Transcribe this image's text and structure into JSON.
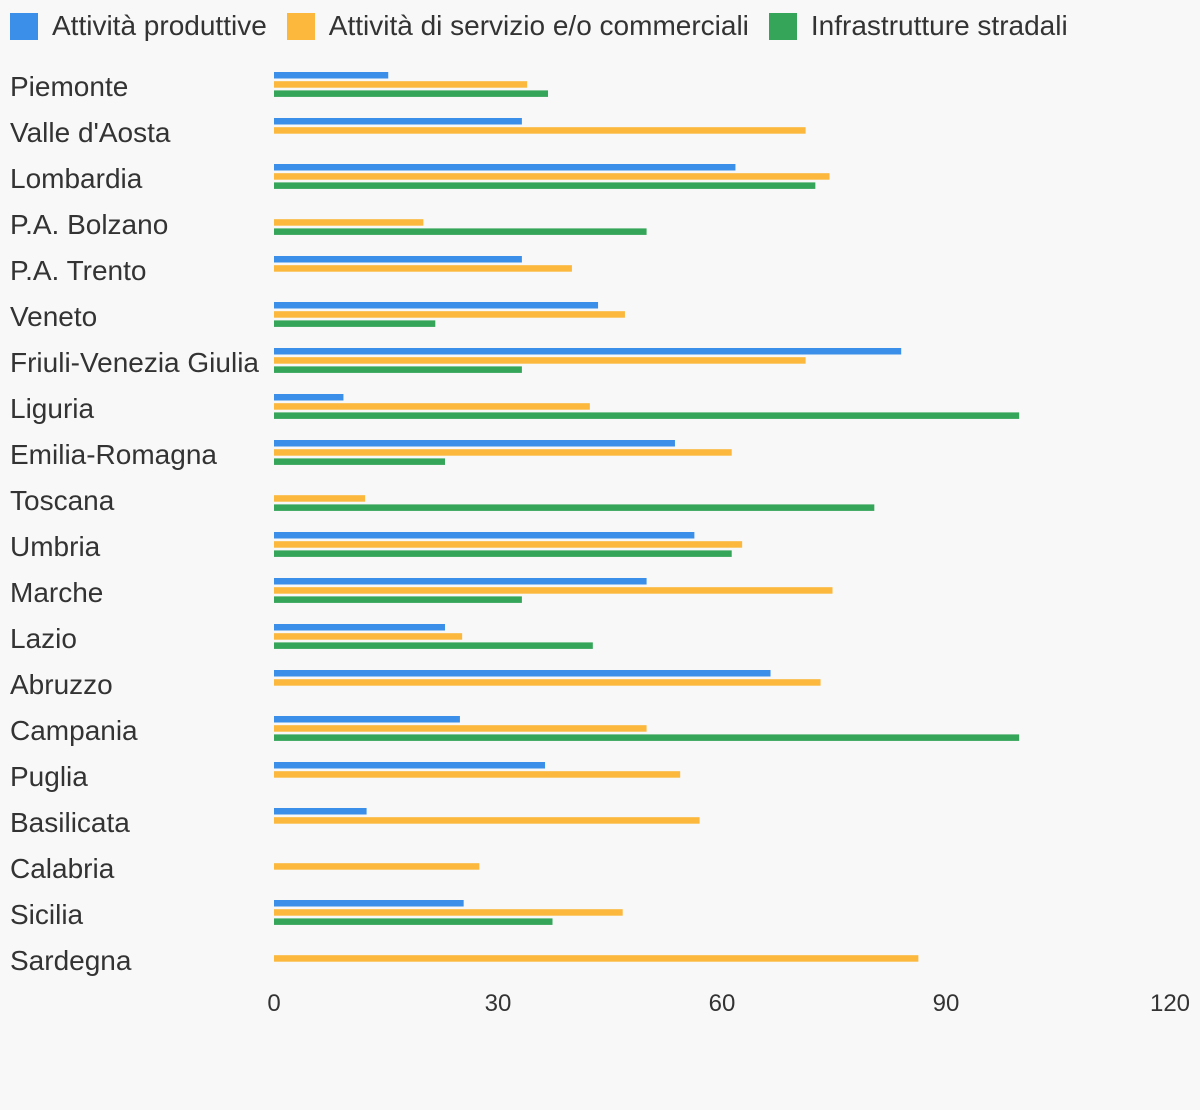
{
  "chart_data": {
    "type": "bar",
    "orientation": "horizontal",
    "legend_position": "top-left",
    "grid": false,
    "xlim": [
      0,
      120
    ],
    "x_ticks": [
      "0",
      "30",
      "60",
      "90",
      "120"
    ],
    "categories": [
      "Piemonte",
      "Valle d'Aosta",
      "Lombardia",
      "P.A. Bolzano",
      "P.A. Trento",
      "Veneto",
      "Friuli-Venezia Giulia",
      "Liguria",
      "Emilia-Romagna",
      "Toscana",
      "Umbria",
      "Marche",
      "Lazio",
      "Abruzzo",
      "Campania",
      "Puglia",
      "Basilicata",
      "Calabria",
      "Sicilia",
      "Sardegna"
    ],
    "series": [
      {
        "name": "Attività produttive",
        "color": "#3b8fe8",
        "values": [
          15.3,
          33.2,
          61.8,
          0,
          33.2,
          43.4,
          84.0,
          9.3,
          53.7,
          0,
          56.3,
          49.9,
          22.9,
          66.5,
          24.9,
          36.3,
          12.4,
          0,
          25.4,
          0
        ]
      },
      {
        "name": "Attività di servizio e/o commerciali",
        "color": "#fbb83c",
        "values": [
          33.9,
          71.2,
          74.4,
          20.0,
          39.9,
          47.0,
          71.2,
          42.3,
          61.3,
          12.2,
          62.7,
          74.8,
          25.2,
          73.2,
          49.9,
          54.4,
          57.0,
          27.5,
          46.7,
          86.3
        ]
      },
      {
        "name": "Infrastrutture stradali",
        "color": "#35a559",
        "values": [
          36.7,
          0,
          72.5,
          49.9,
          0,
          21.6,
          33.2,
          99.8,
          22.9,
          80.4,
          61.3,
          33.2,
          42.7,
          0,
          99.8,
          0,
          0,
          0,
          37.3,
          0
        ]
      }
    ]
  }
}
